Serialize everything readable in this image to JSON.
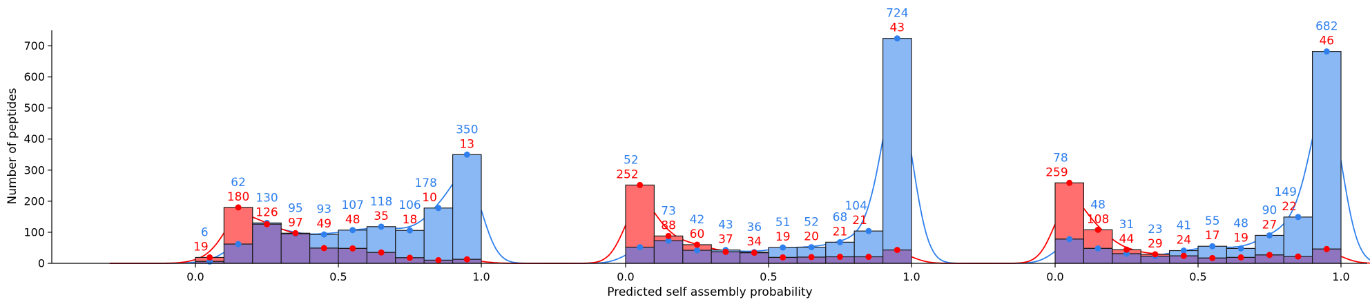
{
  "chart_data": {
    "type": "bar",
    "xlabel": "Predicted self assembly probability",
    "ylabel": "Number of peptides",
    "ylim": [
      0,
      750
    ],
    "y_ticks": [
      "0",
      "100",
      "200",
      "300",
      "400",
      "500",
      "600",
      "700"
    ],
    "x_ticks": [
      "0.0",
      "0.5",
      "1.0"
    ],
    "grid": false,
    "overlay": "semi-transparent histograms with smoothed density curves and point markers at bin centers",
    "colors": {
      "red_series": "#ff0000",
      "red_fill": "#ff6f6f",
      "blue_series": "#2f80ed",
      "blue_fill": "#8ab8f5",
      "overlap_fill": "#8f75c0",
      "edge": "#1a1a1a"
    },
    "panels": [
      {
        "x_range": [
          0,
          1
        ],
        "bin_centers": [
          0.05,
          0.15,
          0.25,
          0.35,
          0.45,
          0.55,
          0.65,
          0.75,
          0.85,
          0.95
        ],
        "series": [
          {
            "color": "blue",
            "values": [
              6,
              62,
              130,
              95,
              93,
              107,
              118,
              106,
              178,
              350
            ]
          },
          {
            "color": "red",
            "values": [
              19,
              180,
              126,
              97,
              49,
              48,
              35,
              18,
              10,
              13
            ]
          }
        ]
      },
      {
        "x_range": [
          0,
          1
        ],
        "bin_centers": [
          0.05,
          0.15,
          0.25,
          0.35,
          0.45,
          0.55,
          0.65,
          0.75,
          0.85,
          0.95
        ],
        "series": [
          {
            "color": "blue",
            "values": [
              52,
              73,
              42,
              43,
              36,
              51,
              52,
              68,
              104,
              724
            ]
          },
          {
            "color": "red",
            "values": [
              252,
              88,
              60,
              37,
              34,
              19,
              20,
              21,
              21,
              43
            ]
          }
        ]
      },
      {
        "x_range": [
          0,
          1
        ],
        "bin_centers": [
          0.05,
          0.15,
          0.25,
          0.35,
          0.45,
          0.55,
          0.65,
          0.75,
          0.85,
          0.95
        ],
        "series": [
          {
            "color": "blue",
            "values": [
              78,
              48,
              31,
              23,
              41,
              55,
              48,
              90,
              149,
              682
            ]
          },
          {
            "color": "red",
            "values": [
              259,
              108,
              44,
              29,
              24,
              17,
              19,
              27,
              22,
              46
            ]
          }
        ]
      }
    ]
  }
}
